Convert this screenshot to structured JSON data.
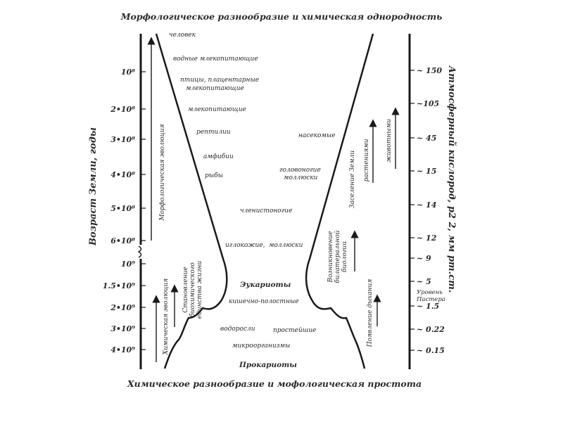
{
  "title_top": "Морфологическое разнообразие и химическая однородность",
  "title_bottom": "Химическое разнообразие и мофологическая простота",
  "left_axis": {
    "name": "Возраст Земли, годы",
    "ticks": [
      "10⁸",
      "2•10⁸",
      "3•10⁸",
      "4•10⁸",
      "5•10⁸",
      "6•10⁸",
      "10⁹",
      "1.5•10⁹",
      "2•10⁹",
      "3•10⁹",
      "4•10⁹"
    ]
  },
  "right_axis": {
    "name": "Атмосферный кислород, p2 2, мм рт.ст.",
    "ticks": [
      "~ 150",
      "~105",
      "~ 45",
      "~ 15",
      "~ 14",
      "~ 12",
      "~ 9",
      "~ 5",
      "~ 1.5",
      "~ 0.22",
      "~ 0.15"
    ],
    "pasteur_label": "Уровень Пастера"
  },
  "arrows_left": {
    "morphological": "Морфологическая эволюция",
    "chemical": "Химическая эволюция",
    "biochem_lines": [
      "Становление",
      "биохимического",
      "единства жизни"
    ]
  },
  "arrows_right": {
    "land": "Заселение Земли",
    "plants": "растениями",
    "animals": "животными",
    "bilateral_lines": [
      "Возникновение",
      "билатеральной",
      "биологии"
    ],
    "respiration": "Появление дыхания"
  },
  "taxa_left": {
    "human": "человек",
    "aquatic_mammals": "водные млекопитающие",
    "birds_line1": "птицы, плацентарные",
    "birds_line2": "млекопитающие",
    "mammals": "млекопитающие",
    "reptiles": "рептилии",
    "amphibians": "амфибии",
    "fish": "рыбы",
    "echinoderms": "иглокожие,"
  },
  "taxa_right": {
    "insects": "насекомые",
    "cephalopods_line1": "головоногие",
    "cephalopods_line2": "моллюски",
    "arthropods": "членистоногие",
    "mollusks": "моллюски"
  },
  "taxa_bottom": {
    "eukaryotes": "Эукариоты",
    "coelenterates": "кишечно-полостные",
    "algae": "водоросли",
    "protozoa": "простейшие",
    "microorganisms": "микроорганизмы",
    "prokaryotes": "Прокариоты"
  }
}
